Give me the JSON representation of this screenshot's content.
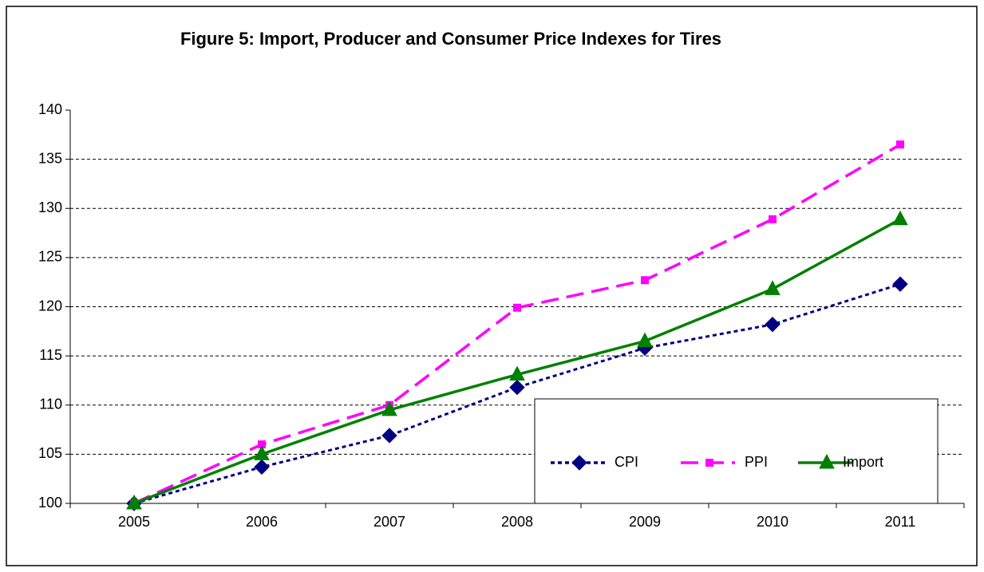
{
  "chart_data": {
    "type": "line",
    "title": "Figure 5: Import, Producer and Consumer Price Indexes for Tires",
    "categories": [
      "2005",
      "2006",
      "2007",
      "2008",
      "2009",
      "2010",
      "2011"
    ],
    "series": [
      {
        "name": "CPI",
        "color": "#000080",
        "line_style": "dotted",
        "marker": "diamond",
        "values": [
          100,
          103.7,
          106.9,
          111.8,
          115.8,
          118.2,
          122.3
        ]
      },
      {
        "name": "PPI",
        "color": "#ff00ff",
        "line_style": "dashed",
        "marker": "square",
        "values": [
          100,
          106,
          110,
          119.9,
          122.7,
          128.9,
          136.5
        ]
      },
      {
        "name": "Import",
        "color": "#008000",
        "line_style": "solid",
        "marker": "triangle",
        "values": [
          100,
          105,
          109.5,
          113.1,
          116.5,
          121.8,
          128.9
        ]
      }
    ],
    "ylim": [
      100,
      140
    ],
    "yticks": [
      100,
      105,
      110,
      115,
      120,
      125,
      130,
      135,
      140
    ],
    "grid": true,
    "legend": "bottom-right"
  }
}
